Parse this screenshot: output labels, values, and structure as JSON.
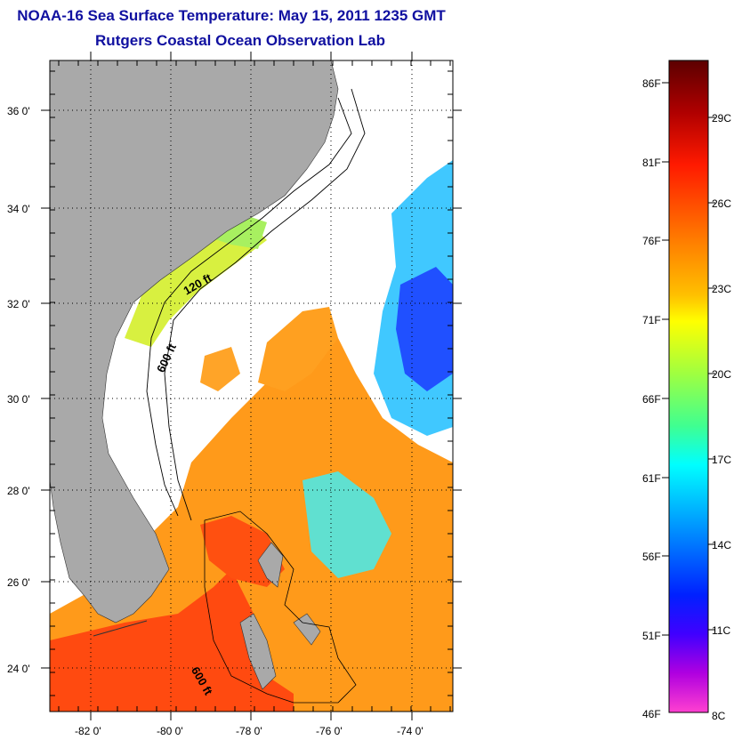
{
  "title": "NOAA-16 Sea Surface Temperature:  May 15, 2011 1235 GMT",
  "subtitle": "Rutgers Coastal Ocean Observation Lab",
  "map": {
    "lat_ticks": [
      "36 0'",
      "34 0'",
      "32 0'",
      "30 0'",
      "28 0'",
      "26 0'",
      "24 0'"
    ],
    "lon_ticks": [
      "-82 0'",
      "-80 0'",
      "-78 0'",
      "-76 0'",
      "-74 0'"
    ],
    "contours": [
      "120 ft",
      "600 ft",
      "600 ft"
    ]
  },
  "colorbar": {
    "fahrenheit": [
      "86F",
      "81F",
      "76F",
      "71F",
      "66F",
      "61F",
      "56F",
      "51F",
      "46F"
    ],
    "celsius": [
      "29C",
      "26C",
      "23C",
      "20C",
      "17C",
      "14C",
      "11C",
      "8C"
    ]
  },
  "colors": {
    "land": "#a9a9a9",
    "title": "#1010a0",
    "clouds": "#ffffff"
  }
}
